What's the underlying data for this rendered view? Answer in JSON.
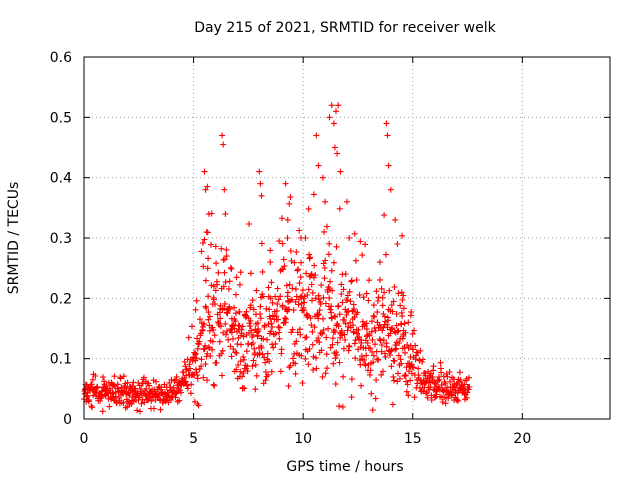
{
  "chart_data": {
    "type": "scatter",
    "title": "Day 215 of 2021, SRMTID for receiver welk",
    "xlabel": "GPS time / hours",
    "ylabel": "SRMTID / TECUs",
    "xlim": [
      0,
      24
    ],
    "ylim": [
      0,
      0.6
    ],
    "x_ticks": [
      0,
      5,
      10,
      15,
      20
    ],
    "x_tick_labels": [
      "0",
      "5",
      "10",
      "15",
      "20"
    ],
    "y_ticks": [
      0,
      0.1,
      0.2,
      0.3,
      0.4,
      0.5,
      0.6
    ],
    "y_tick_labels": [
      "0",
      "0.1",
      "0.2",
      "0.3",
      "0.4",
      "0.5",
      "0.6"
    ],
    "grid": true,
    "marker": "plus",
    "series": [
      {
        "name": "SRMTID",
        "color": "#ff0000",
        "profile": [
          [
            0.0,
            0.045,
            0.012
          ],
          [
            1.0,
            0.05,
            0.013
          ],
          [
            2.0,
            0.045,
            0.013
          ],
          [
            3.0,
            0.04,
            0.012
          ],
          [
            4.0,
            0.045,
            0.012
          ],
          [
            4.5,
            0.06,
            0.013
          ],
          [
            5.0,
            0.09,
            0.025
          ],
          [
            5.5,
            0.15,
            0.05
          ],
          [
            6.0,
            0.17,
            0.055
          ],
          [
            6.5,
            0.16,
            0.055
          ],
          [
            7.0,
            0.12,
            0.035
          ],
          [
            8.0,
            0.12,
            0.04
          ],
          [
            9.0,
            0.17,
            0.05
          ],
          [
            9.5,
            0.18,
            0.05
          ],
          [
            10.5,
            0.16,
            0.05
          ],
          [
            11.0,
            0.17,
            0.06
          ],
          [
            12.0,
            0.14,
            0.05
          ],
          [
            13.0,
            0.12,
            0.04
          ],
          [
            14.0,
            0.14,
            0.05
          ],
          [
            15.0,
            0.09,
            0.03
          ],
          [
            15.5,
            0.06,
            0.017
          ],
          [
            16.5,
            0.05,
            0.013
          ],
          [
            17.6,
            0.05,
            0.013
          ]
        ],
        "x_start": 0.0,
        "x_end": 17.6,
        "x_step": 0.0167,
        "peaks": [
          [
            5.5,
            0.41
          ],
          [
            5.55,
            0.38
          ],
          [
            5.6,
            0.31
          ],
          [
            5.7,
            0.34
          ],
          [
            6.3,
            0.47
          ],
          [
            6.35,
            0.455
          ],
          [
            6.4,
            0.38
          ],
          [
            6.45,
            0.34
          ],
          [
            8.0,
            0.41
          ],
          [
            8.05,
            0.39
          ],
          [
            8.1,
            0.37
          ],
          [
            8.5,
            0.26
          ],
          [
            9.2,
            0.39
          ],
          [
            9.3,
            0.33
          ],
          [
            9.9,
            0.3
          ],
          [
            10.1,
            0.3
          ],
          [
            10.6,
            0.47
          ],
          [
            10.7,
            0.42
          ],
          [
            10.9,
            0.4
          ],
          [
            11.0,
            0.36
          ],
          [
            11.3,
            0.52
          ],
          [
            11.4,
            0.49
          ],
          [
            11.5,
            0.51
          ],
          [
            11.6,
            0.52
          ],
          [
            11.45,
            0.45
          ],
          [
            11.55,
            0.44
          ],
          [
            11.7,
            0.41
          ],
          [
            11.2,
            0.5
          ],
          [
            12.0,
            0.36
          ],
          [
            12.1,
            0.3
          ],
          [
            13.5,
            0.26
          ],
          [
            13.8,
            0.49
          ],
          [
            13.85,
            0.47
          ],
          [
            13.9,
            0.42
          ],
          [
            14.0,
            0.38
          ],
          [
            14.2,
            0.33
          ],
          [
            14.3,
            0.29
          ],
          [
            14.5,
            0.21
          ]
        ]
      }
    ]
  }
}
